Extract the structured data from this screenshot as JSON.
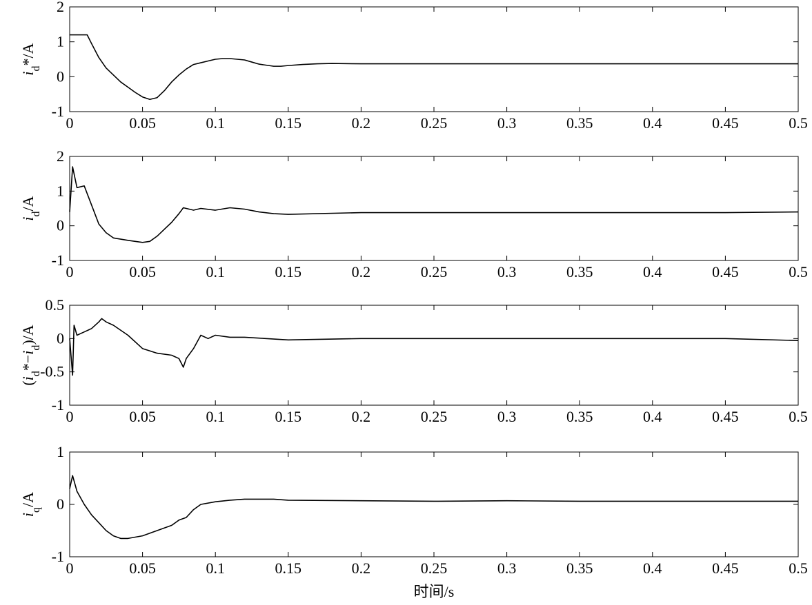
{
  "chart_data": [
    {
      "type": "line",
      "ylabel": [
        {
          "text": "i",
          "style": "italic"
        },
        {
          "text": "d",
          "style": "sub"
        },
        {
          "text": "*/A"
        }
      ],
      "xlim": [
        0,
        0.5
      ],
      "xticks": [
        0,
        0.05,
        0.1,
        0.15,
        0.2,
        0.25,
        0.3,
        0.35,
        0.4,
        0.45,
        0.5
      ],
      "ylim": [
        -1,
        2
      ],
      "yticks": [
        -1,
        0,
        1,
        2
      ],
      "series": [
        {
          "color": "#000000",
          "x": [
            0,
            0.005,
            0.01,
            0.012,
            0.015,
            0.02,
            0.025,
            0.03,
            0.035,
            0.04,
            0.045,
            0.05,
            0.055,
            0.06,
            0.065,
            0.07,
            0.075,
            0.08,
            0.085,
            0.09,
            0.095,
            0.1,
            0.105,
            0.11,
            0.115,
            0.12,
            0.125,
            0.13,
            0.135,
            0.14,
            0.145,
            0.15,
            0.16,
            0.17,
            0.18,
            0.2,
            0.25,
            0.3,
            0.35,
            0.4,
            0.45,
            0.5
          ],
          "values": [
            1.2,
            1.2,
            1.2,
            1.2,
            0.95,
            0.55,
            0.25,
            0.05,
            -0.15,
            -0.3,
            -0.45,
            -0.58,
            -0.65,
            -0.6,
            -0.4,
            -0.15,
            0.05,
            0.22,
            0.35,
            0.4,
            0.45,
            0.5,
            0.52,
            0.52,
            0.5,
            0.48,
            0.42,
            0.36,
            0.33,
            0.3,
            0.3,
            0.32,
            0.35,
            0.37,
            0.38,
            0.37,
            0.37,
            0.37,
            0.37,
            0.37,
            0.37,
            0.37
          ]
        }
      ]
    },
    {
      "type": "line",
      "ylabel": [
        {
          "text": "i",
          "style": "italic"
        },
        {
          "text": "d",
          "style": "sub"
        },
        {
          "text": "/A"
        }
      ],
      "xlim": [
        0,
        0.5
      ],
      "xticks": [
        0,
        0.05,
        0.1,
        0.15,
        0.2,
        0.25,
        0.3,
        0.35,
        0.4,
        0.45,
        0.5
      ],
      "ylim": [
        -1,
        2
      ],
      "yticks": [
        -1,
        0,
        1,
        2
      ],
      "series": [
        {
          "color": "#000000",
          "x": [
            0,
            0.002,
            0.005,
            0.01,
            0.015,
            0.02,
            0.025,
            0.03,
            0.04,
            0.05,
            0.055,
            0.06,
            0.065,
            0.07,
            0.075,
            0.078,
            0.08,
            0.085,
            0.09,
            0.1,
            0.11,
            0.12,
            0.13,
            0.14,
            0.15,
            0.2,
            0.25,
            0.3,
            0.35,
            0.4,
            0.45,
            0.5
          ],
          "values": [
            0.4,
            1.7,
            1.1,
            1.15,
            0.6,
            0.05,
            -0.2,
            -0.35,
            -0.42,
            -0.48,
            -0.45,
            -0.3,
            -0.1,
            0.1,
            0.35,
            0.52,
            0.5,
            0.45,
            0.5,
            0.45,
            0.52,
            0.48,
            0.4,
            0.35,
            0.33,
            0.38,
            0.38,
            0.38,
            0.38,
            0.38,
            0.38,
            0.4
          ]
        }
      ]
    },
    {
      "type": "line",
      "ylabel": [
        {
          "text": "("
        },
        {
          "text": "i",
          "style": "italic"
        },
        {
          "text": "d",
          "style": "sub"
        },
        {
          "text": "*−"
        },
        {
          "text": "i",
          "style": "italic"
        },
        {
          "text": "d",
          "style": "sub"
        },
        {
          "text": ")/A"
        }
      ],
      "xlim": [
        0,
        0.5
      ],
      "xticks": [
        0,
        0.05,
        0.1,
        0.15,
        0.2,
        0.25,
        0.3,
        0.35,
        0.4,
        0.45,
        0.5
      ],
      "ylim": [
        -1,
        0.5
      ],
      "yticks": [
        -1,
        -0.5,
        0,
        0.5
      ],
      "series": [
        {
          "color": "#000000",
          "x": [
            0,
            0.002,
            0.003,
            0.005,
            0.01,
            0.015,
            0.02,
            0.022,
            0.025,
            0.03,
            0.04,
            0.05,
            0.06,
            0.07,
            0.075,
            0.078,
            0.08,
            0.085,
            0.09,
            0.095,
            0.1,
            0.11,
            0.12,
            0.15,
            0.2,
            0.25,
            0.3,
            0.35,
            0.4,
            0.45,
            0.5
          ],
          "values": [
            0,
            -0.55,
            0.2,
            0.05,
            0.1,
            0.15,
            0.25,
            0.3,
            0.25,
            0.2,
            0.05,
            -0.15,
            -0.22,
            -0.25,
            -0.3,
            -0.43,
            -0.3,
            -0.15,
            0.05,
            0,
            0.05,
            0.02,
            0.02,
            -0.02,
            0,
            0,
            0,
            0,
            0,
            0,
            -0.03
          ]
        }
      ]
    },
    {
      "type": "line",
      "ylabel": [
        {
          "text": "i",
          "style": "italic"
        },
        {
          "text": "q",
          "style": "sub"
        },
        {
          "text": "/A"
        }
      ],
      "xlabel": "时间/s",
      "xlim": [
        0,
        0.5
      ],
      "xticks": [
        0,
        0.05,
        0.1,
        0.15,
        0.2,
        0.25,
        0.3,
        0.35,
        0.4,
        0.45,
        0.5
      ],
      "ylim": [
        -1,
        1
      ],
      "yticks": [
        -1,
        0,
        1
      ],
      "series": [
        {
          "color": "#000000",
          "x": [
            0,
            0.002,
            0.005,
            0.01,
            0.015,
            0.02,
            0.025,
            0.03,
            0.035,
            0.04,
            0.05,
            0.06,
            0.07,
            0.075,
            0.08,
            0.085,
            0.09,
            0.1,
            0.11,
            0.12,
            0.14,
            0.15,
            0.2,
            0.25,
            0.3,
            0.35,
            0.4,
            0.45,
            0.5
          ],
          "values": [
            0.3,
            0.55,
            0.25,
            0,
            -0.2,
            -0.35,
            -0.5,
            -0.6,
            -0.65,
            -0.65,
            -0.6,
            -0.5,
            -0.4,
            -0.3,
            -0.25,
            -0.1,
            0,
            0.05,
            0.08,
            0.1,
            0.1,
            0.08,
            0.07,
            0.06,
            0.07,
            0.06,
            0.06,
            0.06,
            0.06
          ]
        }
      ]
    }
  ]
}
